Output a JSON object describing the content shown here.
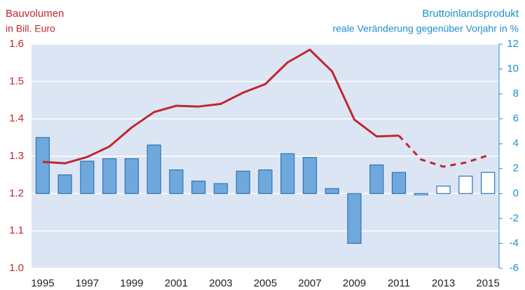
{
  "chart_data": {
    "type": "bar_line",
    "title_left": "Bauvolumen",
    "subtitle_left": "in Bill. Euro",
    "title_right": "Bruttoinlandsprodukt",
    "subtitle_right": "reale Veränderung gegenüber Vorjahr in %",
    "categories": [
      "1995",
      null,
      "1997",
      null,
      "1999",
      null,
      "2001",
      null,
      "2003",
      null,
      "2005",
      null,
      "2007",
      null,
      "2009",
      null,
      "2011",
      null,
      "2013",
      null,
      "2015"
    ],
    "ylim": [
      1.0,
      1.6
    ],
    "yticks": [
      {
        "value": 1.0,
        "label": "1.0"
      },
      1.1,
      1.2,
      1.3,
      1.4,
      1.5,
      1.6
    ],
    "y2lim": [
      -6,
      12
    ],
    "y2ticks": [
      -6,
      -4,
      -2,
      0,
      2,
      4,
      6,
      8,
      10,
      12
    ],
    "grid": true,
    "series": [
      {
        "type": "bar",
        "axis": "y2",
        "color": "#6fa8dc",
        "edge": "#2f75b5",
        "values": [
          4.5,
          1.5,
          2.6,
          2.8,
          2.8,
          3.9,
          1.9,
          1.0,
          0.8,
          1.8,
          1.9,
          3.2,
          2.9,
          0.4,
          -4.0,
          2.3,
          1.7,
          -0.1,
          0.6,
          1.4,
          1.7
        ],
        "hollow": [
          false,
          false,
          false,
          false,
          false,
          false,
          false,
          false,
          false,
          false,
          false,
          false,
          false,
          false,
          false,
          false,
          false,
          true,
          true,
          true,
          true
        ]
      },
      {
        "type": "line",
        "axis": "y",
        "color": "#c0272d",
        "dashed": false,
        "values": [
          1.285,
          1.281,
          1.298,
          1.326,
          1.377,
          1.418,
          1.435,
          1.433,
          1.44,
          1.47,
          1.493,
          1.551,
          1.585,
          1.527,
          1.398,
          1.353,
          1.355,
          null,
          null,
          null,
          null
        ]
      },
      {
        "type": "line",
        "axis": "y",
        "color": "#c0272d",
        "dashed": true,
        "values": [
          null,
          null,
          null,
          null,
          null,
          null,
          null,
          null,
          null,
          null,
          null,
          null,
          null,
          null,
          null,
          null,
          1.355,
          1.291,
          1.272,
          1.283,
          1.302
        ]
      }
    ]
  }
}
